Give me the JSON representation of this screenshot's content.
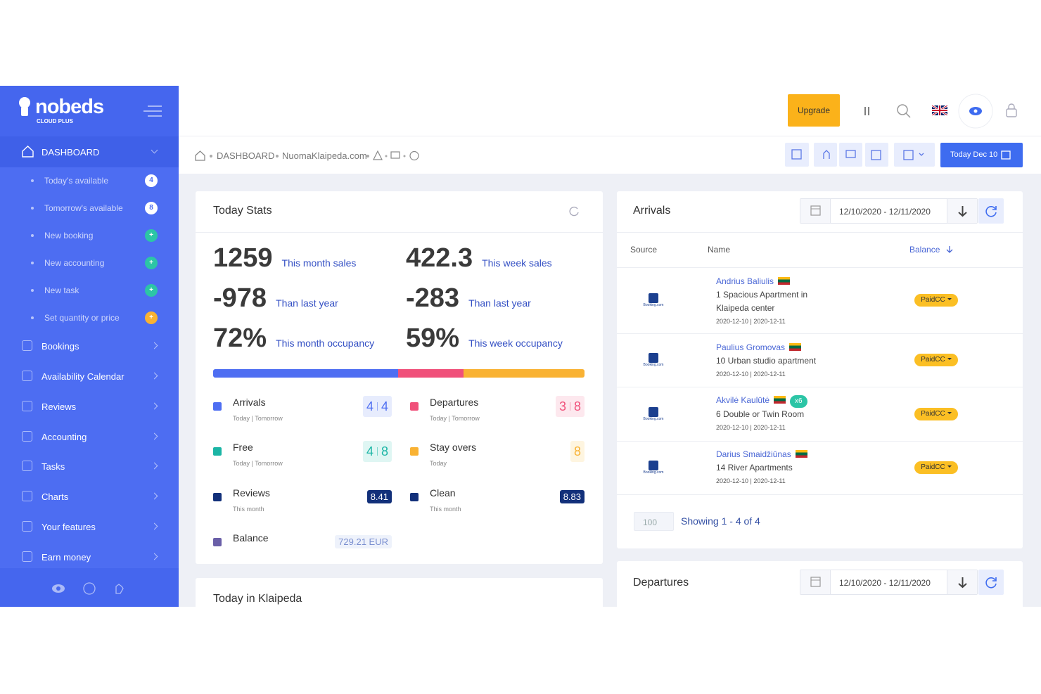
{
  "sidebar": {
    "brand": "nobeds",
    "brand_sub": "CLOUD PLUS",
    "dashboard": "DASHBOARD",
    "submenu": [
      {
        "label": "Today's available",
        "badge": "4"
      },
      {
        "label": "Tomorrow's available",
        "badge": "8"
      },
      {
        "label": "New booking",
        "badge": "+"
      },
      {
        "label": "New accounting",
        "badge": "+"
      },
      {
        "label": "New task",
        "badge": "+"
      },
      {
        "label": "Set quantity or price",
        "badge": "+"
      }
    ],
    "nav": [
      "Bookings",
      "Availability Calendar",
      "Reviews",
      "Accounting",
      "Tasks",
      "Charts",
      "Your features",
      "Earn money"
    ]
  },
  "topbar": {
    "upgrade": "Upgrade"
  },
  "breadcrumb": {
    "items": [
      "DASHBOARD",
      "NuomaKlaipeda.com"
    ],
    "today_button": "Today Dec 10"
  },
  "today_stats": {
    "title": "Today Stats",
    "stats": [
      {
        "value": "1259",
        "label": "This month sales"
      },
      {
        "value": "422.3",
        "label": "This week sales"
      },
      {
        "value": "-978",
        "label": "Than last year"
      },
      {
        "value": "-283",
        "label": "Than last year"
      },
      {
        "value": "72%",
        "label": "This month occupancy"
      },
      {
        "value": "59%",
        "label": "This week occupancy"
      }
    ],
    "items": [
      {
        "name": "Arrivals",
        "sub": "Today | Tomorrow",
        "values": [
          "4",
          "4"
        ]
      },
      {
        "name": "Departures",
        "sub": "Today | Tomorrow",
        "values": [
          "3",
          "8"
        ]
      },
      {
        "name": "Free",
        "sub": "Today | Tomorrow",
        "values": [
          "4",
          "8"
        ]
      },
      {
        "name": "Stay overs",
        "sub": "Today",
        "values": [
          "8"
        ]
      },
      {
        "name": "Reviews",
        "sub": "This month",
        "values": [
          "8.41"
        ]
      },
      {
        "name": "Clean",
        "sub": "This month",
        "values": [
          "8.83"
        ]
      },
      {
        "name": "Balance",
        "values": [
          "729.21 EUR"
        ]
      }
    ]
  },
  "today_in": {
    "title": "Today in Klaipeda"
  },
  "arrivals": {
    "title": "Arrivals",
    "date_range": "12/10/2020 - 12/11/2020",
    "columns": [
      "Source",
      "Name",
      "Balance"
    ],
    "rows": [
      {
        "source": "Booking.com",
        "name": "Andrius Baliulis",
        "property": "1 Spacious Apartment in Klaipeda center",
        "dates": "2020-12-10 | 2020-12-11",
        "status": "PaidCC"
      },
      {
        "source": "Booking.com",
        "name": "Paulius Gromovas",
        "property": "10 Urban studio apartment",
        "dates": "2020-12-10 | 2020-12-11",
        "status": "PaidCC"
      },
      {
        "source": "Booking.com",
        "name": "Akvilė Kaulūtė",
        "tag": "x6",
        "property": "6 Double or Twin Room",
        "dates": "2020-12-10 | 2020-12-11",
        "status": "PaidCC"
      },
      {
        "source": "Booking.com",
        "name": "Darius Smaidžiūnas",
        "property": "14 River Apartments",
        "dates": "2020-12-10 | 2020-12-11",
        "status": "PaidCC"
      }
    ],
    "page_size": "100",
    "showing": "Showing 1 - 4 of 4"
  },
  "departures": {
    "title": "Departures",
    "date_range": "12/10/2020 - 12/11/2020"
  }
}
